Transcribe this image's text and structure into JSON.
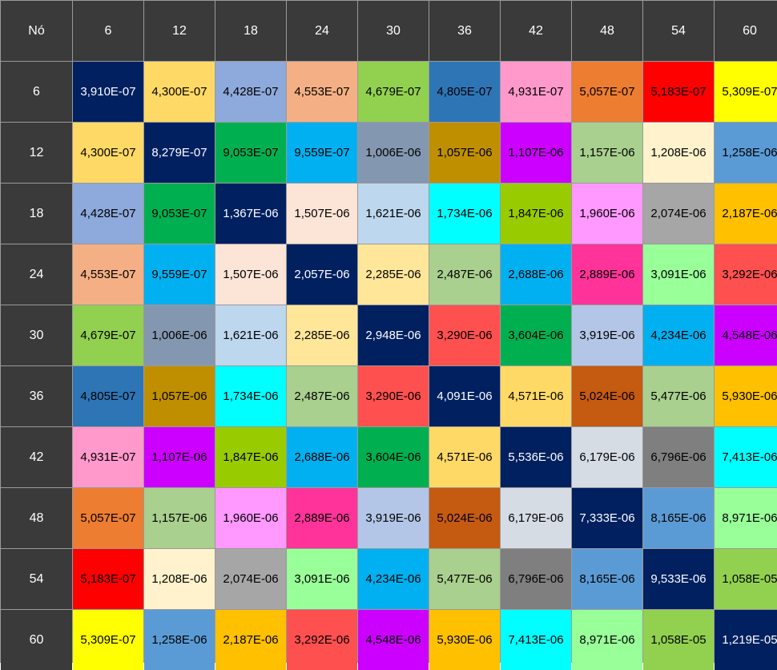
{
  "chart_data": {
    "type": "heatmap",
    "title": "",
    "corner_label": "Nó",
    "row_labels": [
      "6",
      "12",
      "18",
      "24",
      "30",
      "36",
      "42",
      "48",
      "54",
      "60"
    ],
    "col_labels": [
      "6",
      "12",
      "18",
      "24",
      "30",
      "36",
      "42",
      "48",
      "54",
      "60"
    ],
    "values": [
      [
        "3,910E-07",
        "4,300E-07",
        "4,428E-07",
        "4,553E-07",
        "4,679E-07",
        "4,805E-07",
        "4,931E-07",
        "5,057E-07",
        "5,183E-07",
        "5,309E-07"
      ],
      [
        "4,300E-07",
        "8,279E-07",
        "9,053E-07",
        "9,559E-07",
        "1,006E-06",
        "1,057E-06",
        "1,107E-06",
        "1,157E-06",
        "1,208E-06",
        "1,258E-06"
      ],
      [
        "4,428E-07",
        "9,053E-07",
        "1,367E-06",
        "1,507E-06",
        "1,621E-06",
        "1,734E-06",
        "1,847E-06",
        "1,960E-06",
        "2,074E-06",
        "2,187E-06"
      ],
      [
        "4,553E-07",
        "9,559E-07",
        "1,507E-06",
        "2,057E-06",
        "2,285E-06",
        "2,487E-06",
        "2,688E-06",
        "2,889E-06",
        "3,091E-06",
        "3,292E-06"
      ],
      [
        "4,679E-07",
        "1,006E-06",
        "1,621E-06",
        "2,285E-06",
        "2,948E-06",
        "3,290E-06",
        "3,604E-06",
        "3,919E-06",
        "4,234E-06",
        "4,548E-06"
      ],
      [
        "4,805E-07",
        "1,057E-06",
        "1,734E-06",
        "2,487E-06",
        "3,290E-06",
        "4,091E-06",
        "4,571E-06",
        "5,024E-06",
        "5,477E-06",
        "5,930E-06"
      ],
      [
        "4,931E-07",
        "1,107E-06",
        "1,847E-06",
        "2,688E-06",
        "3,604E-06",
        "4,571E-06",
        "5,536E-06",
        "6,179E-06",
        "6,796E-06",
        "7,413E-06"
      ],
      [
        "5,057E-07",
        "1,157E-06",
        "1,960E-06",
        "2,889E-06",
        "3,919E-06",
        "5,024E-06",
        "6,179E-06",
        "7,333E-06",
        "8,165E-06",
        "8,971E-06"
      ],
      [
        "5,183E-07",
        "1,208E-06",
        "2,074E-06",
        "3,091E-06",
        "4,234E-06",
        "5,477E-06",
        "6,796E-06",
        "8,165E-06",
        "9,533E-06",
        "1,058E-05"
      ],
      [
        "5,309E-07",
        "1,258E-06",
        "2,187E-06",
        "3,292E-06",
        "4,548E-06",
        "5,930E-06",
        "7,413E-06",
        "8,971E-06",
        "1,058E-05",
        "1,219E-05"
      ]
    ],
    "cell_colors": [
      [
        "#002060",
        "#FFD966",
        "#8EA9DB",
        "#F4B084",
        "#92D050",
        "#2E75B6",
        "#FF99CC",
        "#ED7D31",
        "#FF0000",
        "#FFFF00"
      ],
      [
        "#FFD966",
        "#002060",
        "#00B050",
        "#00B0F0",
        "#8497B0",
        "#BF8F00",
        "#CC00FF",
        "#A9D08E",
        "#FFF2CC",
        "#5B9BD5"
      ],
      [
        "#8EA9DB",
        "#00B050",
        "#002060",
        "#FCE4D6",
        "#BDD7EE",
        "#00FFFF",
        "#99CC00",
        "#FF99FF",
        "#A6A6A6",
        "#FFC000"
      ],
      [
        "#F4B084",
        "#00B0F0",
        "#FCE4D6",
        "#002060",
        "#FFE699",
        "#A9D08E",
        "#00B0F0",
        "#FF3399",
        "#99FF99",
        "#FF5050"
      ],
      [
        "#92D050",
        "#8497B0",
        "#BDD7EE",
        "#FFE699",
        "#002060",
        "#FF5050",
        "#00B050",
        "#B4C6E7",
        "#00B0F0",
        "#CC00FF"
      ],
      [
        "#2E75B6",
        "#BF8F00",
        "#00FFFF",
        "#A9D08E",
        "#FF5050",
        "#002060",
        "#FFD966",
        "#C55A11",
        "#A9D08E",
        "#FFC000"
      ],
      [
        "#FF99CC",
        "#CC00FF",
        "#99CC00",
        "#00B0F0",
        "#00B050",
        "#FFD966",
        "#002060",
        "#D6DCE4",
        "#7F7F7F",
        "#00FFFF"
      ],
      [
        "#ED7D31",
        "#A9D08E",
        "#FF99FF",
        "#FF3399",
        "#B4C6E7",
        "#C55A11",
        "#D6DCE4",
        "#002060",
        "#5B9BD5",
        "#99FF99"
      ],
      [
        "#FF0000",
        "#FFF2CC",
        "#A6A6A6",
        "#99FF99",
        "#00B0F0",
        "#A9D08E",
        "#7F7F7F",
        "#5B9BD5",
        "#002060",
        "#92D050"
      ],
      [
        "#FFFF00",
        "#5B9BD5",
        "#FFC000",
        "#FF5050",
        "#CC00FF",
        "#FFC000",
        "#00FFFF",
        "#99FF99",
        "#92D050",
        "#002060"
      ]
    ],
    "header_bg": "#3A3A3A",
    "header_text_color": "#FFFFFF"
  }
}
